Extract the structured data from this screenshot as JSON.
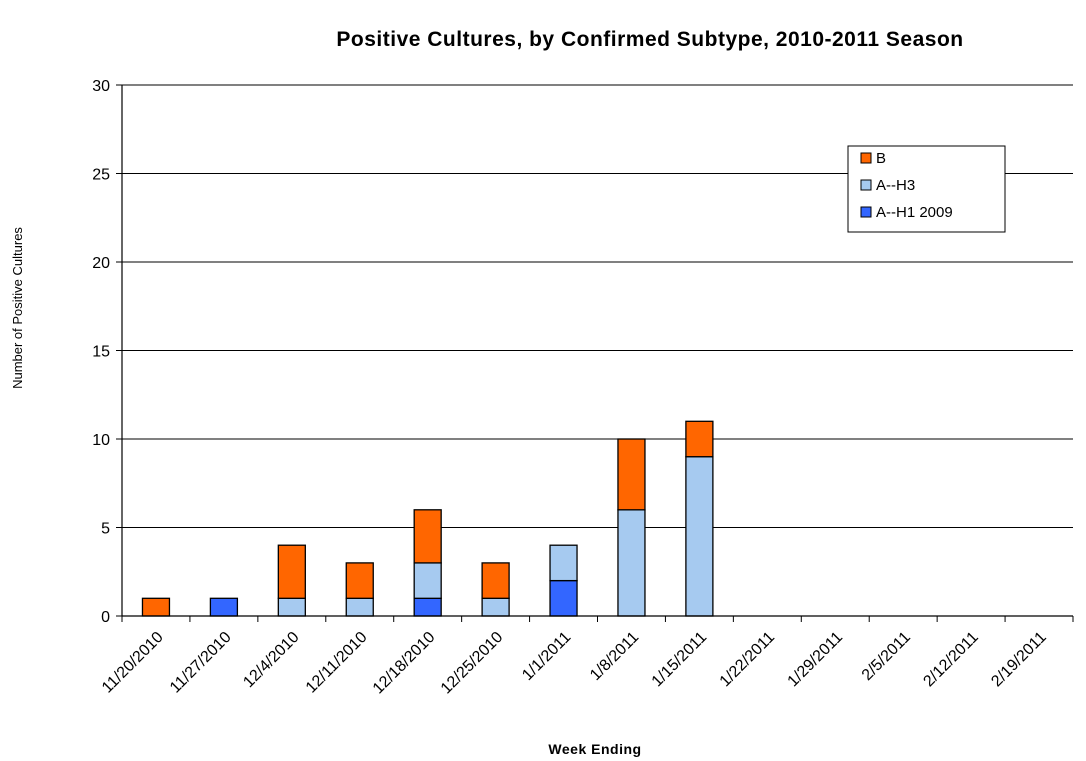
{
  "chart_data": {
    "type": "bar",
    "stacked": true,
    "title": "Positive Cultures, by Confirmed Subtype, 2010-2011 Season",
    "xlabel": "Week Ending",
    "ylabel": "Number of Positive Cultures",
    "ylim": [
      0,
      30
    ],
    "yticks": [
      0,
      5,
      10,
      15,
      20,
      25,
      30
    ],
    "grid": true,
    "legend_position": "top-right",
    "categories": [
      "11/20/2010",
      "11/27/2010",
      "12/4/2010",
      "12/11/2010",
      "12/18/2010",
      "12/25/2010",
      "1/1/2011",
      "1/8/2011",
      "1/15/2011",
      "1/22/2011",
      "1/29/2011",
      "2/5/2011",
      "2/12/2011",
      "2/19/2011"
    ],
    "series": [
      {
        "name": "A--H1 2009",
        "color": "#3366ff",
        "values": [
          0,
          1,
          0,
          0,
          1,
          0,
          2,
          0,
          0,
          0,
          0,
          0,
          0,
          0
        ]
      },
      {
        "name": "A--H3",
        "color": "#a6caf0",
        "values": [
          0,
          0,
          1,
          1,
          2,
          1,
          2,
          6,
          9,
          0,
          0,
          0,
          0,
          0
        ]
      },
      {
        "name": "B",
        "color": "#ff6600",
        "values": [
          1,
          0,
          3,
          2,
          3,
          2,
          0,
          4,
          2,
          0,
          0,
          0,
          0,
          0
        ]
      }
    ],
    "legend_order": [
      "B",
      "A--H3",
      "A--H1 2009"
    ]
  }
}
